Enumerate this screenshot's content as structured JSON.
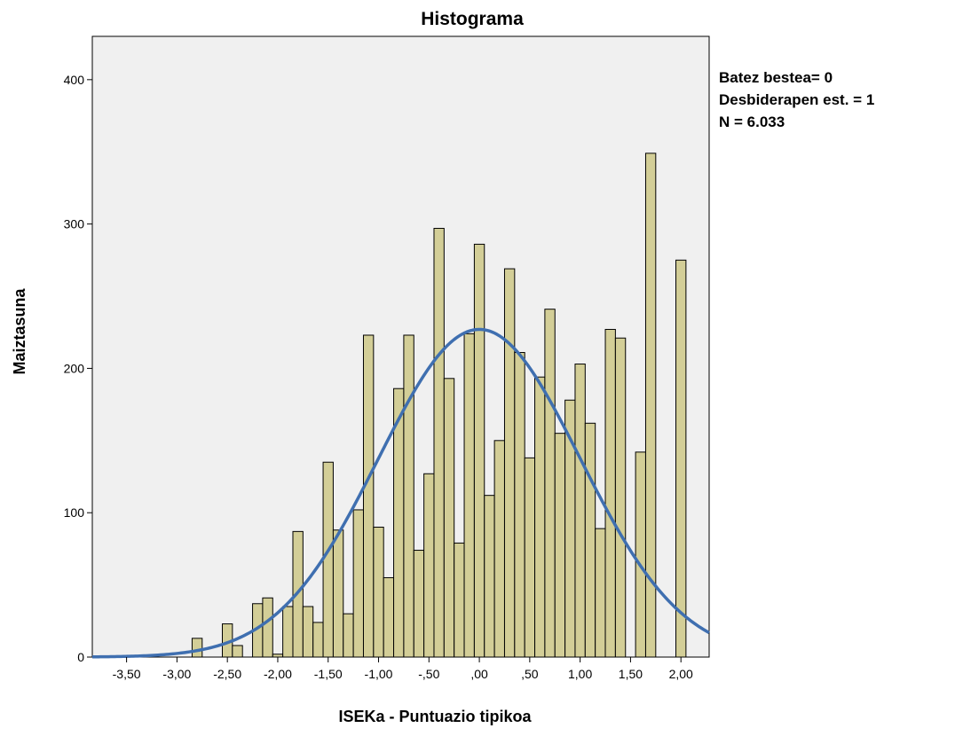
{
  "chart_data": {
    "type": "bar",
    "title": "Histograma",
    "xlabel": "ISEKa - Puntuazio tipikoa",
    "ylabel": "Maiztasuna",
    "xlim": [
      -3.84,
      2.28
    ],
    "ylim": [
      0,
      430
    ],
    "x_ticks": [
      -3.5,
      -3.0,
      -2.5,
      -2.0,
      -1.5,
      -1.0,
      -0.5,
      0.0,
      0.5,
      1.0,
      1.5,
      2.0
    ],
    "x_tick_labels": [
      "-3,50",
      "-3,00",
      "-2,50",
      "-2,00",
      "-1,50",
      "-1,00",
      "-,50",
      ",00",
      ",50",
      "1,00",
      "1,50",
      "2,00"
    ],
    "y_ticks": [
      0,
      100,
      200,
      300,
      400
    ],
    "y_tick_labels": [
      "0",
      "100",
      "200",
      "300",
      "400"
    ],
    "bin_width": 0.1,
    "bins": [
      {
        "x": -2.8,
        "y": 13
      },
      {
        "x": -2.5,
        "y": 23
      },
      {
        "x": -2.4,
        "y": 8
      },
      {
        "x": -2.2,
        "y": 37
      },
      {
        "x": -2.1,
        "y": 41
      },
      {
        "x": -2.0,
        "y": 2
      },
      {
        "x": -1.9,
        "y": 35
      },
      {
        "x": -1.8,
        "y": 87
      },
      {
        "x": -1.7,
        "y": 35
      },
      {
        "x": -1.6,
        "y": 24
      },
      {
        "x": -1.5,
        "y": 135
      },
      {
        "x": -1.4,
        "y": 88
      },
      {
        "x": -1.3,
        "y": 30
      },
      {
        "x": -1.2,
        "y": 102
      },
      {
        "x": -1.1,
        "y": 223
      },
      {
        "x": -1.0,
        "y": 90
      },
      {
        "x": -0.9,
        "y": 55
      },
      {
        "x": -0.8,
        "y": 186
      },
      {
        "x": -0.7,
        "y": 223
      },
      {
        "x": -0.6,
        "y": 74
      },
      {
        "x": -0.5,
        "y": 127
      },
      {
        "x": -0.4,
        "y": 297
      },
      {
        "x": -0.3,
        "y": 193
      },
      {
        "x": -0.2,
        "y": 79
      },
      {
        "x": -0.1,
        "y": 224
      },
      {
        "x": 0.0,
        "y": 286
      },
      {
        "x": 0.1,
        "y": 112
      },
      {
        "x": 0.2,
        "y": 150
      },
      {
        "x": 0.3,
        "y": 269
      },
      {
        "x": 0.4,
        "y": 211
      },
      {
        "x": 0.5,
        "y": 138
      },
      {
        "x": 0.6,
        "y": 194
      },
      {
        "x": 0.7,
        "y": 241
      },
      {
        "x": 0.8,
        "y": 155
      },
      {
        "x": 0.9,
        "y": 178
      },
      {
        "x": 1.0,
        "y": 203
      },
      {
        "x": 1.1,
        "y": 162
      },
      {
        "x": 1.2,
        "y": 89
      },
      {
        "x": 1.3,
        "y": 227
      },
      {
        "x": 1.4,
        "y": 221
      },
      {
        "x": 1.6,
        "y": 142
      },
      {
        "x": 1.7,
        "y": 349
      },
      {
        "x": 2.0,
        "y": 275
      }
    ],
    "normal_curve": {
      "mean": 0,
      "sd": 1,
      "n": 6033,
      "peak": 227
    },
    "stats": [
      "Batez bestea= 0",
      "Desbiderapen est. = 1",
      "N = 6.033"
    ],
    "colors": {
      "plot_bg": "#f0f0f0",
      "bar_fill": "#d3ce97",
      "bar_stroke": "#000000",
      "curve": "#3f6fb0"
    }
  }
}
